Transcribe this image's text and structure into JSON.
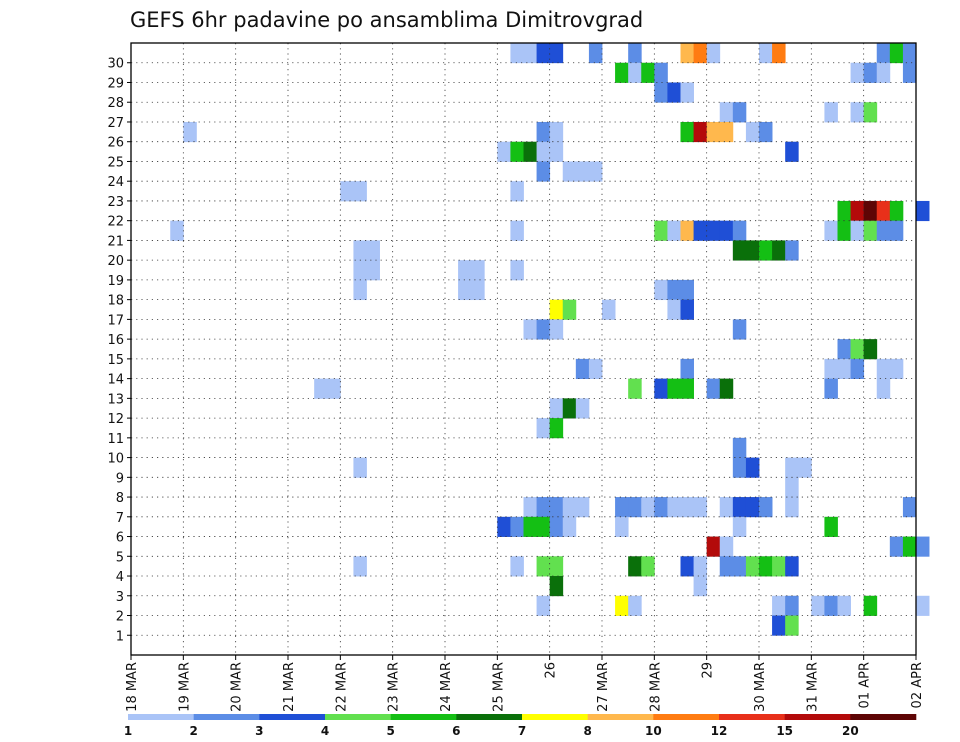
{
  "chart_data": {
    "type": "heatmap",
    "title": "GEFS 6hr padavine po ansamblima Dimitrovgrad",
    "xlabel": "",
    "ylabel": "",
    "x_tick_labels": [
      "18 MAR",
      "19 MAR",
      "20 MAR",
      "21 MAR",
      "22 MAR",
      "23 MAR",
      "24 MAR",
      "25 MAR",
      "26",
      "27 MAR",
      "28 MAR",
      "29",
      "30 MAR",
      "31 MAR",
      "01 APR",
      "02 APR"
    ],
    "y_tick_labels": [
      "1",
      "2",
      "3",
      "4",
      "5",
      "6",
      "7",
      "8",
      "9",
      "10",
      "11",
      "12",
      "13",
      "14",
      "15",
      "16",
      "17",
      "18",
      "19",
      "20",
      "21",
      "22",
      "23",
      "24",
      "25",
      "26",
      "27",
      "28",
      "29",
      "30"
    ],
    "x_range_steps": [
      0,
      60
    ],
    "steps_per_day": 4,
    "members": 31,
    "grid": true,
    "legend": {
      "position": "bottom",
      "labels": [
        "1",
        "2",
        "3",
        "4",
        "5",
        "6",
        "7",
        "8",
        "10",
        "12",
        "15",
        "20"
      ],
      "colors": [
        "#aac4f7",
        "#5c8de6",
        "#1f4fd6",
        "#62e04f",
        "#14bf14",
        "#0a700a",
        "#ffff00",
        "#ffb84d",
        "#ff7c12",
        "#e8301a",
        "#b30a0a",
        "#5e0505"
      ]
    },
    "cells": [
      [
        30,
        29,
        0
      ],
      [
        30,
        30,
        0
      ],
      [
        30,
        31,
        2
      ],
      [
        30,
        32,
        2
      ],
      [
        30,
        35,
        1
      ],
      [
        30,
        38,
        1
      ],
      [
        30,
        42,
        7
      ],
      [
        30,
        43,
        8
      ],
      [
        30,
        44,
        0
      ],
      [
        30,
        48,
        0
      ],
      [
        30,
        49,
        8
      ],
      [
        30,
        57,
        1
      ],
      [
        30,
        58,
        4
      ],
      [
        30,
        59,
        1
      ],
      [
        29,
        37,
        4
      ],
      [
        29,
        38,
        0
      ],
      [
        29,
        39,
        4
      ],
      [
        29,
        40,
        1
      ],
      [
        29,
        55,
        0
      ],
      [
        29,
        56,
        1
      ],
      [
        29,
        57,
        0
      ],
      [
        29,
        59,
        1
      ],
      [
        28,
        40,
        1
      ],
      [
        28,
        41,
        2
      ],
      [
        28,
        42,
        0
      ],
      [
        27,
        45,
        0
      ],
      [
        27,
        46,
        1
      ],
      [
        27,
        53,
        0
      ],
      [
        27,
        55,
        0
      ],
      [
        27,
        56,
        3
      ],
      [
        26,
        4,
        0
      ],
      [
        26,
        31,
        1
      ],
      [
        26,
        32,
        0
      ],
      [
        26,
        42,
        4
      ],
      [
        26,
        43,
        10
      ],
      [
        26,
        44,
        7
      ],
      [
        26,
        45,
        7
      ],
      [
        26,
        47,
        0
      ],
      [
        26,
        48,
        1
      ],
      [
        25,
        28,
        0
      ],
      [
        25,
        29,
        4
      ],
      [
        25,
        30,
        5
      ],
      [
        25,
        31,
        0
      ],
      [
        25,
        32,
        0
      ],
      [
        25,
        50,
        2
      ],
      [
        24,
        31,
        1
      ],
      [
        24,
        33,
        0
      ],
      [
        24,
        34,
        0
      ],
      [
        24,
        35,
        0
      ],
      [
        23,
        16,
        0
      ],
      [
        23,
        17,
        0
      ],
      [
        23,
        29,
        0
      ],
      [
        22,
        54,
        4
      ],
      [
        22,
        55,
        10
      ],
      [
        22,
        56,
        11
      ],
      [
        22,
        57,
        9
      ],
      [
        22,
        58,
        4
      ],
      [
        22,
        60,
        2
      ],
      [
        21,
        3,
        0
      ],
      [
        21,
        29,
        0
      ],
      [
        21,
        40,
        3
      ],
      [
        21,
        41,
        0
      ],
      [
        21,
        42,
        7
      ],
      [
        21,
        43,
        2
      ],
      [
        21,
        44,
        2
      ],
      [
        21,
        45,
        2
      ],
      [
        21,
        46,
        1
      ],
      [
        21,
        53,
        0
      ],
      [
        21,
        54,
        4
      ],
      [
        21,
        55,
        0
      ],
      [
        21,
        56,
        3
      ],
      [
        21,
        57,
        1
      ],
      [
        21,
        58,
        1
      ],
      [
        20,
        17,
        0
      ],
      [
        20,
        18,
        0
      ],
      [
        20,
        46,
        5
      ],
      [
        20,
        47,
        5
      ],
      [
        20,
        48,
        4
      ],
      [
        20,
        49,
        5
      ],
      [
        20,
        50,
        1
      ],
      [
        19,
        17,
        0
      ],
      [
        19,
        18,
        0
      ],
      [
        19,
        25,
        0
      ],
      [
        19,
        26,
        0
      ],
      [
        19,
        29,
        0
      ],
      [
        18,
        17,
        0
      ],
      [
        18,
        25,
        0
      ],
      [
        18,
        26,
        0
      ],
      [
        18,
        40,
        0
      ],
      [
        18,
        41,
        1
      ],
      [
        18,
        42,
        1
      ],
      [
        17,
        32,
        6
      ],
      [
        17,
        33,
        3
      ],
      [
        17,
        36,
        0
      ],
      [
        17,
        41,
        0
      ],
      [
        17,
        42,
        2
      ],
      [
        16,
        30,
        0
      ],
      [
        16,
        31,
        1
      ],
      [
        16,
        32,
        0
      ],
      [
        16,
        46,
        1
      ],
      [
        15,
        54,
        1
      ],
      [
        15,
        55,
        3
      ],
      [
        15,
        56,
        5
      ],
      [
        14,
        34,
        1
      ],
      [
        14,
        35,
        0
      ],
      [
        14,
        42,
        1
      ],
      [
        14,
        53,
        0
      ],
      [
        14,
        54,
        0
      ],
      [
        14,
        55,
        1
      ],
      [
        14,
        57,
        0
      ],
      [
        14,
        58,
        0
      ],
      [
        13,
        14,
        0
      ],
      [
        13,
        15,
        0
      ],
      [
        13,
        38,
        3
      ],
      [
        13,
        40,
        2
      ],
      [
        13,
        41,
        4
      ],
      [
        13,
        42,
        4
      ],
      [
        13,
        44,
        1
      ],
      [
        13,
        45,
        5
      ],
      [
        13,
        53,
        1
      ],
      [
        13,
        57,
        0
      ],
      [
        12,
        32,
        0
      ],
      [
        12,
        33,
        5
      ],
      [
        12,
        34,
        0
      ],
      [
        11,
        31,
        0
      ],
      [
        11,
        32,
        4
      ],
      [
        10,
        46,
        1
      ],
      [
        9,
        17,
        0
      ],
      [
        9,
        46,
        1
      ],
      [
        9,
        47,
        2
      ],
      [
        9,
        50,
        0
      ],
      [
        9,
        51,
        0
      ],
      [
        8,
        50,
        0
      ],
      [
        7,
        30,
        0
      ],
      [
        7,
        31,
        1
      ],
      [
        7,
        32,
        1
      ],
      [
        7,
        33,
        0
      ],
      [
        7,
        34,
        0
      ],
      [
        7,
        37,
        1
      ],
      [
        7,
        38,
        1
      ],
      [
        7,
        39,
        0
      ],
      [
        7,
        40,
        1
      ],
      [
        7,
        41,
        0
      ],
      [
        7,
        42,
        0
      ],
      [
        7,
        43,
        0
      ],
      [
        7,
        45,
        0
      ],
      [
        7,
        46,
        2
      ],
      [
        7,
        47,
        2
      ],
      [
        7,
        48,
        1
      ],
      [
        7,
        50,
        0
      ],
      [
        7,
        59,
        1
      ],
      [
        6,
        28,
        2
      ],
      [
        6,
        29,
        1
      ],
      [
        6,
        30,
        4
      ],
      [
        6,
        31,
        4
      ],
      [
        6,
        32,
        1
      ],
      [
        6,
        33,
        0
      ],
      [
        6,
        37,
        0
      ],
      [
        6,
        46,
        0
      ],
      [
        6,
        53,
        4
      ],
      [
        5,
        44,
        10
      ],
      [
        5,
        45,
        0
      ],
      [
        5,
        58,
        1
      ],
      [
        5,
        59,
        4
      ],
      [
        5,
        60,
        1
      ],
      [
        4,
        17,
        0
      ],
      [
        4,
        29,
        0
      ],
      [
        4,
        31,
        3
      ],
      [
        4,
        32,
        3
      ],
      [
        4,
        38,
        5
      ],
      [
        4,
        39,
        3
      ],
      [
        4,
        42,
        2
      ],
      [
        4,
        43,
        0
      ],
      [
        4,
        45,
        1
      ],
      [
        4,
        46,
        1
      ],
      [
        4,
        47,
        3
      ],
      [
        4,
        48,
        4
      ],
      [
        4,
        49,
        3
      ],
      [
        4,
        50,
        2
      ],
      [
        3,
        32,
        5
      ],
      [
        3,
        43,
        0
      ],
      [
        2,
        31,
        0
      ],
      [
        2,
        37,
        6
      ],
      [
        2,
        38,
        0
      ],
      [
        2,
        49,
        0
      ],
      [
        2,
        50,
        1
      ],
      [
        2,
        52,
        0
      ],
      [
        2,
        53,
        1
      ],
      [
        2,
        54,
        0
      ],
      [
        2,
        56,
        4
      ],
      [
        2,
        60,
        0
      ],
      [
        1,
        49,
        2
      ],
      [
        1,
        50,
        3
      ]
    ]
  }
}
